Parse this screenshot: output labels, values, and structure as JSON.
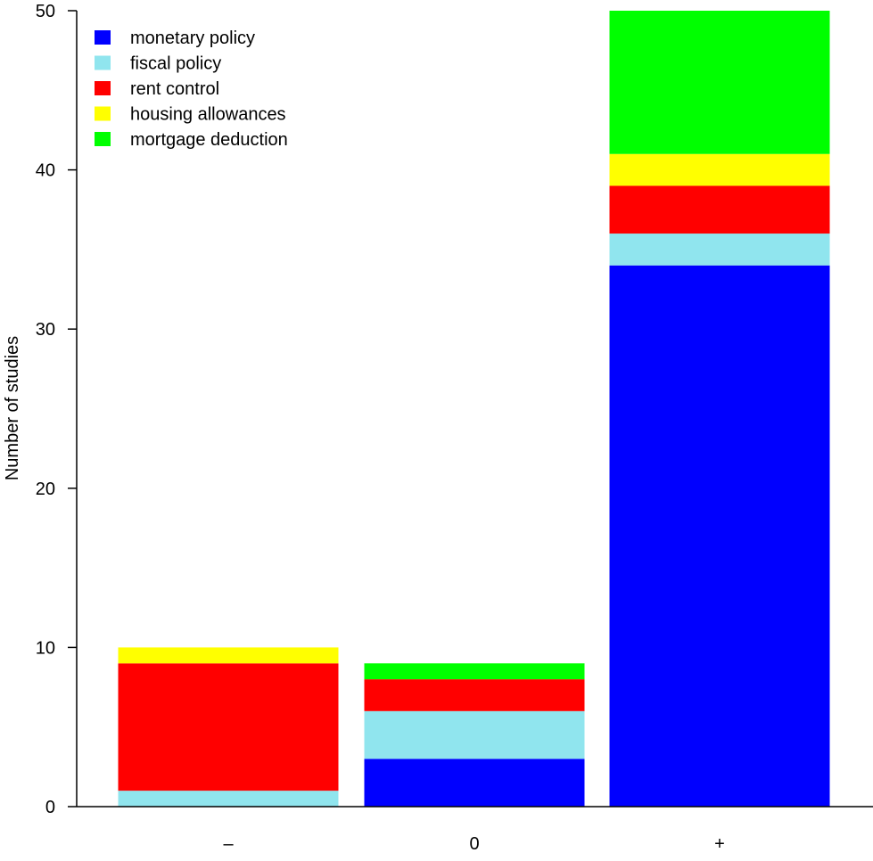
{
  "chart_data": {
    "type": "bar",
    "stacked": true,
    "title": "",
    "xlabel": "",
    "ylabel": "Number of studies",
    "ylim": [
      0,
      50
    ],
    "yticks": [
      0,
      10,
      20,
      30,
      40,
      50
    ],
    "grid": false,
    "legend_position": "top-left",
    "categories": [
      "–",
      "0",
      "+"
    ],
    "series": [
      {
        "name": "monetary policy",
        "color": "#0000FF",
        "values": [
          0,
          3,
          34
        ]
      },
      {
        "name": "fiscal policy",
        "color": "#90E5EE",
        "values": [
          1,
          3,
          2
        ]
      },
      {
        "name": "rent control",
        "color": "#FF0000",
        "values": [
          8,
          2,
          3
        ]
      },
      {
        "name": "housing allowances",
        "color": "#FFFF00",
        "values": [
          1,
          0,
          2
        ]
      },
      {
        "name": "mortgage deduction",
        "color": "#00FF00",
        "values": [
          0,
          1,
          9
        ]
      }
    ]
  }
}
